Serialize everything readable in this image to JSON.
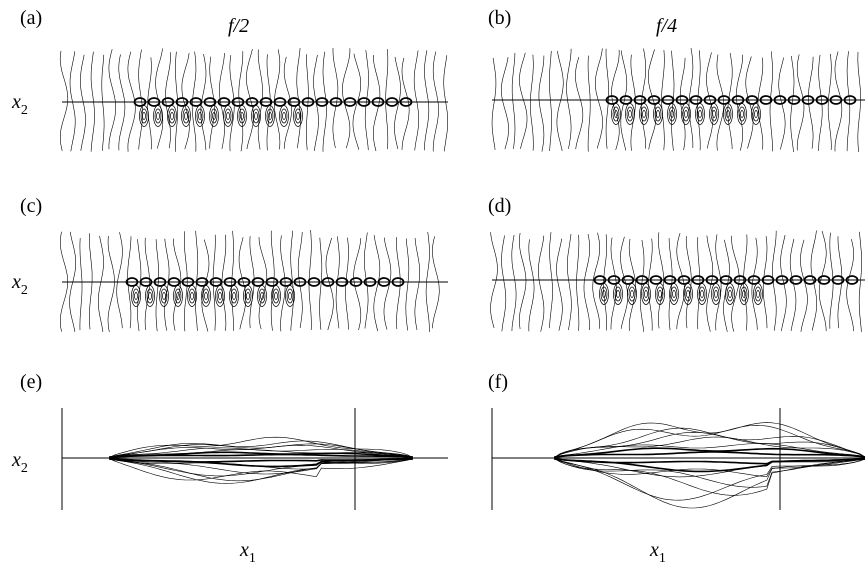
{
  "panels": [
    {
      "label": "(a)",
      "title": "f/2"
    },
    {
      "label": "(b)",
      "title": "f/4"
    },
    {
      "label": "(c)"
    },
    {
      "label": "(d)"
    },
    {
      "label": "(e)"
    },
    {
      "label": "(f)"
    }
  ],
  "y_axis_label": {
    "base": "x",
    "sub": "2"
  },
  "x_axis_label": {
    "base": "x",
    "sub": "1"
  }
}
